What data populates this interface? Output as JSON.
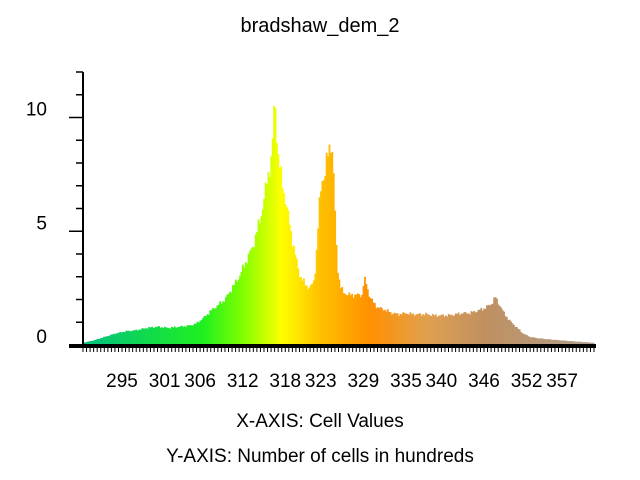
{
  "chart_data": {
    "type": "bar",
    "title": "bradshaw_dem_2",
    "xlabel": "X-AXIS: Cell Values",
    "ylabel": "Y-AXIS: Number of cells in hundreds",
    "x_tick_labels": [
      "295",
      "301",
      "306",
      "312",
      "318",
      "323",
      "329",
      "335",
      "340",
      "346",
      "352",
      "357"
    ],
    "x_ticks": [
      295,
      301,
      306,
      312,
      318,
      323,
      329,
      335,
      340,
      346,
      352,
      357
    ],
    "y_tick_labels": [
      "0",
      "5",
      "10"
    ],
    "y_ticks": [
      0,
      5,
      10
    ],
    "xlim": [
      289.5,
      361.5
    ],
    "ylim": [
      0,
      12
    ],
    "bin_width": 0.2,
    "color_stops": [
      {
        "x": 289.5,
        "color": "#00c080"
      },
      {
        "x": 306.5,
        "color": "#20f020"
      },
      {
        "x": 312.0,
        "color": "#80ff00"
      },
      {
        "x": 317.5,
        "color": "#ffff00"
      },
      {
        "x": 323.0,
        "color": "#ffc000"
      },
      {
        "x": 330.0,
        "color": "#ff9000"
      },
      {
        "x": 338.0,
        "color": "#e0a050"
      },
      {
        "x": 346.0,
        "color": "#c09060"
      },
      {
        "x": 361.5,
        "color": "#b0a090"
      }
    ],
    "series": [
      {
        "x": [
          289.5,
          291.0,
          292.5,
          294.0,
          295.5,
          297.0,
          298.5,
          300.0,
          301.5,
          303.0,
          304.5,
          305.5,
          306.5,
          307.5,
          308.5,
          309.5,
          310.5,
          311.5,
          312.5,
          313.5,
          314.5,
          315.0,
          315.5,
          316.0,
          316.3,
          316.5,
          316.7,
          317.0,
          317.5,
          318.0,
          318.5,
          319.0,
          319.5,
          320.0,
          320.5,
          321.0,
          321.5,
          322.0,
          322.3,
          322.8,
          323.2,
          323.5,
          323.8,
          324.1,
          324.4,
          324.7,
          325.0,
          325.3,
          325.7,
          326.2,
          327.0,
          328.0,
          328.8,
          329.1,
          329.4,
          329.8,
          330.3,
          331.0,
          332.0,
          333.0,
          334.0,
          335.0,
          336.0,
          337.0,
          338.0,
          339.0,
          340.0,
          341.0,
          342.0,
          343.0,
          344.0,
          345.0,
          346.0,
          346.5,
          347.0,
          347.3,
          347.6,
          347.9,
          348.3,
          348.8,
          349.5,
          350.5,
          351.5,
          352.5,
          353.5,
          355.0,
          357.0,
          359.0,
          361.5
        ],
        "values": [
          0.1,
          0.2,
          0.35,
          0.5,
          0.6,
          0.65,
          0.75,
          0.8,
          0.75,
          0.8,
          0.85,
          0.95,
          1.2,
          1.5,
          1.75,
          2.0,
          2.5,
          3.0,
          3.7,
          4.4,
          5.6,
          6.4,
          7.4,
          8.1,
          9.4,
          11.1,
          9.8,
          8.3,
          7.2,
          6.4,
          5.5,
          4.6,
          3.8,
          3.1,
          2.8,
          2.6,
          2.5,
          2.8,
          3.6,
          6.2,
          7.4,
          7.3,
          8.0,
          8.6,
          8.9,
          8.2,
          5.8,
          3.6,
          2.6,
          2.3,
          2.2,
          2.2,
          2.2,
          2.9,
          2.7,
          2.2,
          1.9,
          1.65,
          1.55,
          1.4,
          1.35,
          1.4,
          1.35,
          1.35,
          1.35,
          1.3,
          1.3,
          1.3,
          1.35,
          1.4,
          1.4,
          1.5,
          1.6,
          1.7,
          1.8,
          1.95,
          2.1,
          1.9,
          1.7,
          1.4,
          1.1,
          0.8,
          0.5,
          0.35,
          0.3,
          0.25,
          0.2,
          0.15,
          0.1
        ]
      }
    ],
    "legend": "none",
    "grid": false
  }
}
